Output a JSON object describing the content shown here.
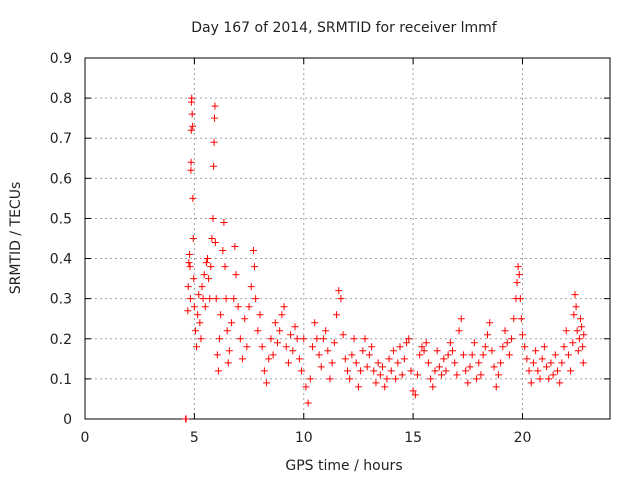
{
  "chart_data": {
    "type": "scatter",
    "title": "Day 167 of 2014, SRMTID for receiver lmmf",
    "xlabel": "GPS time / hours",
    "ylabel": "SRMTID / TECUs",
    "xlim": [
      0,
      24
    ],
    "ylim": [
      0,
      0.9
    ],
    "xticks": [
      0,
      5,
      10,
      15,
      20
    ],
    "yticks": [
      0,
      0.1,
      0.2,
      0.3,
      0.4,
      0.5,
      0.6,
      0.7,
      0.8,
      0.9
    ],
    "xtick_labels": [
      "0",
      "5",
      "10",
      "15",
      "20"
    ],
    "ytick_labels": [
      "0",
      "0.1",
      "0.2",
      "0.3",
      "0.4",
      "0.5",
      "0.6",
      "0.7",
      "0.8",
      "0.9"
    ],
    "grid": true,
    "marker": "plus",
    "color": "#ff0000",
    "series": [
      {
        "name": "SRMTID",
        "points": [
          [
            4.6,
            0.0
          ],
          [
            4.62,
            0.0
          ],
          [
            4.7,
            0.27
          ],
          [
            4.72,
            0.33
          ],
          [
            4.75,
            0.39
          ],
          [
            4.78,
            0.41
          ],
          [
            4.8,
            0.38
          ],
          [
            4.82,
            0.3
          ],
          [
            4.84,
            0.62
          ],
          [
            4.85,
            0.64
          ],
          [
            4.86,
            0.72
          ],
          [
            4.87,
            0.79
          ],
          [
            4.88,
            0.8
          ],
          [
            4.9,
            0.76
          ],
          [
            4.92,
            0.73
          ],
          [
            4.93,
            0.55
          ],
          [
            4.95,
            0.45
          ],
          [
            4.97,
            0.35
          ],
          [
            5.0,
            0.28
          ],
          [
            5.05,
            0.22
          ],
          [
            5.1,
            0.18
          ],
          [
            5.15,
            0.26
          ],
          [
            5.2,
            0.31
          ],
          [
            5.25,
            0.24
          ],
          [
            5.3,
            0.2
          ],
          [
            5.35,
            0.33
          ],
          [
            5.4,
            0.3
          ],
          [
            5.45,
            0.36
          ],
          [
            5.5,
            0.28
          ],
          [
            5.55,
            0.39
          ],
          [
            5.6,
            0.4
          ],
          [
            5.65,
            0.35
          ],
          [
            5.7,
            0.3
          ],
          [
            5.75,
            0.38
          ],
          [
            5.8,
            0.45
          ],
          [
            5.85,
            0.5
          ],
          [
            5.88,
            0.63
          ],
          [
            5.9,
            0.69
          ],
          [
            5.92,
            0.75
          ],
          [
            5.94,
            0.78
          ],
          [
            5.96,
            0.44
          ],
          [
            6.0,
            0.3
          ],
          [
            6.05,
            0.16
          ],
          [
            6.1,
            0.12
          ],
          [
            6.15,
            0.2
          ],
          [
            6.2,
            0.26
          ],
          [
            6.3,
            0.42
          ],
          [
            6.35,
            0.49
          ],
          [
            6.4,
            0.38
          ],
          [
            6.45,
            0.3
          ],
          [
            6.5,
            0.22
          ],
          [
            6.55,
            0.14
          ],
          [
            6.6,
            0.17
          ],
          [
            6.7,
            0.24
          ],
          [
            6.8,
            0.3
          ],
          [
            6.85,
            0.43
          ],
          [
            6.9,
            0.36
          ],
          [
            7.0,
            0.28
          ],
          [
            7.1,
            0.2
          ],
          [
            7.2,
            0.15
          ],
          [
            7.3,
            0.25
          ],
          [
            7.4,
            0.18
          ],
          [
            7.5,
            0.28
          ],
          [
            7.6,
            0.33
          ],
          [
            7.7,
            0.42
          ],
          [
            7.75,
            0.38
          ],
          [
            7.8,
            0.3
          ],
          [
            7.9,
            0.22
          ],
          [
            8.0,
            0.26
          ],
          [
            8.1,
            0.18
          ],
          [
            8.2,
            0.12
          ],
          [
            8.3,
            0.09
          ],
          [
            8.4,
            0.15
          ],
          [
            8.5,
            0.2
          ],
          [
            8.6,
            0.16
          ],
          [
            8.7,
            0.24
          ],
          [
            8.8,
            0.19
          ],
          [
            8.9,
            0.22
          ],
          [
            9.0,
            0.26
          ],
          [
            9.1,
            0.28
          ],
          [
            9.2,
            0.18
          ],
          [
            9.3,
            0.14
          ],
          [
            9.4,
            0.21
          ],
          [
            9.5,
            0.17
          ],
          [
            9.6,
            0.23
          ],
          [
            9.7,
            0.2
          ],
          [
            9.8,
            0.15
          ],
          [
            9.9,
            0.12
          ],
          [
            10.0,
            0.2
          ],
          [
            10.1,
            0.08
          ],
          [
            10.2,
            0.04
          ],
          [
            10.3,
            0.1
          ],
          [
            10.4,
            0.18
          ],
          [
            10.5,
            0.24
          ],
          [
            10.6,
            0.2
          ],
          [
            10.7,
            0.16
          ],
          [
            10.8,
            0.13
          ],
          [
            10.9,
            0.2
          ],
          [
            11.0,
            0.22
          ],
          [
            11.1,
            0.17
          ],
          [
            11.2,
            0.1
          ],
          [
            11.3,
            0.14
          ],
          [
            11.4,
            0.19
          ],
          [
            11.5,
            0.26
          ],
          [
            11.6,
            0.32
          ],
          [
            11.7,
            0.3
          ],
          [
            11.8,
            0.21
          ],
          [
            11.9,
            0.15
          ],
          [
            12.0,
            0.12
          ],
          [
            12.1,
            0.1
          ],
          [
            12.2,
            0.16
          ],
          [
            12.3,
            0.2
          ],
          [
            12.4,
            0.14
          ],
          [
            12.5,
            0.08
          ],
          [
            12.6,
            0.12
          ],
          [
            12.7,
            0.17
          ],
          [
            12.8,
            0.2
          ],
          [
            12.9,
            0.13
          ],
          [
            13.0,
            0.16
          ],
          [
            13.1,
            0.18
          ],
          [
            13.2,
            0.12
          ],
          [
            13.3,
            0.09
          ],
          [
            13.4,
            0.14
          ],
          [
            13.5,
            0.11
          ],
          [
            13.6,
            0.13
          ],
          [
            13.7,
            0.08
          ],
          [
            13.8,
            0.1
          ],
          [
            13.9,
            0.15
          ],
          [
            14.0,
            0.12
          ],
          [
            14.1,
            0.17
          ],
          [
            14.2,
            0.1
          ],
          [
            14.3,
            0.14
          ],
          [
            14.4,
            0.18
          ],
          [
            14.5,
            0.11
          ],
          [
            14.6,
            0.15
          ],
          [
            14.7,
            0.19
          ],
          [
            14.8,
            0.2
          ],
          [
            14.9,
            0.12
          ],
          [
            15.0,
            0.07
          ],
          [
            15.1,
            0.06
          ],
          [
            15.2,
            0.11
          ],
          [
            15.3,
            0.16
          ],
          [
            15.4,
            0.18
          ],
          [
            15.5,
            0.17
          ],
          [
            15.6,
            0.19
          ],
          [
            15.7,
            0.14
          ],
          [
            15.8,
            0.1
          ],
          [
            15.9,
            0.08
          ],
          [
            16.0,
            0.12
          ],
          [
            16.1,
            0.17
          ],
          [
            16.2,
            0.13
          ],
          [
            16.3,
            0.11
          ],
          [
            16.4,
            0.15
          ],
          [
            16.5,
            0.12
          ],
          [
            16.6,
            0.16
          ],
          [
            16.7,
            0.19
          ],
          [
            16.8,
            0.17
          ],
          [
            16.9,
            0.14
          ],
          [
            17.0,
            0.11
          ],
          [
            17.1,
            0.22
          ],
          [
            17.2,
            0.25
          ],
          [
            17.3,
            0.16
          ],
          [
            17.4,
            0.12
          ],
          [
            17.5,
            0.09
          ],
          [
            17.6,
            0.13
          ],
          [
            17.7,
            0.16
          ],
          [
            17.8,
            0.19
          ],
          [
            17.9,
            0.1
          ],
          [
            18.0,
            0.14
          ],
          [
            18.1,
            0.11
          ],
          [
            18.2,
            0.16
          ],
          [
            18.3,
            0.18
          ],
          [
            18.4,
            0.21
          ],
          [
            18.5,
            0.24
          ],
          [
            18.6,
            0.17
          ],
          [
            18.7,
            0.13
          ],
          [
            18.8,
            0.08
          ],
          [
            18.9,
            0.11
          ],
          [
            19.0,
            0.14
          ],
          [
            19.1,
            0.18
          ],
          [
            19.2,
            0.22
          ],
          [
            19.3,
            0.19
          ],
          [
            19.4,
            0.16
          ],
          [
            19.5,
            0.2
          ],
          [
            19.6,
            0.25
          ],
          [
            19.7,
            0.3
          ],
          [
            19.75,
            0.34
          ],
          [
            19.8,
            0.38
          ],
          [
            19.85,
            0.36
          ],
          [
            19.9,
            0.3
          ],
          [
            19.95,
            0.25
          ],
          [
            20.0,
            0.21
          ],
          [
            20.1,
            0.18
          ],
          [
            20.2,
            0.15
          ],
          [
            20.3,
            0.12
          ],
          [
            20.4,
            0.09
          ],
          [
            20.5,
            0.14
          ],
          [
            20.6,
            0.17
          ],
          [
            20.7,
            0.12
          ],
          [
            20.8,
            0.1
          ],
          [
            20.9,
            0.15
          ],
          [
            21.0,
            0.18
          ],
          [
            21.1,
            0.13
          ],
          [
            21.2,
            0.1
          ],
          [
            21.3,
            0.14
          ],
          [
            21.4,
            0.11
          ],
          [
            21.5,
            0.16
          ],
          [
            21.6,
            0.12
          ],
          [
            21.7,
            0.09
          ],
          [
            21.8,
            0.14
          ],
          [
            21.9,
            0.18
          ],
          [
            22.0,
            0.22
          ],
          [
            22.1,
            0.16
          ],
          [
            22.2,
            0.12
          ],
          [
            22.3,
            0.19
          ],
          [
            22.35,
            0.26
          ],
          [
            22.4,
            0.31
          ],
          [
            22.45,
            0.28
          ],
          [
            22.5,
            0.22
          ],
          [
            22.55,
            0.17
          ],
          [
            22.6,
            0.2
          ],
          [
            22.65,
            0.25
          ],
          [
            22.7,
            0.23
          ],
          [
            22.75,
            0.18
          ],
          [
            22.78,
            0.14
          ],
          [
            22.8,
            0.21
          ]
        ]
      }
    ]
  }
}
